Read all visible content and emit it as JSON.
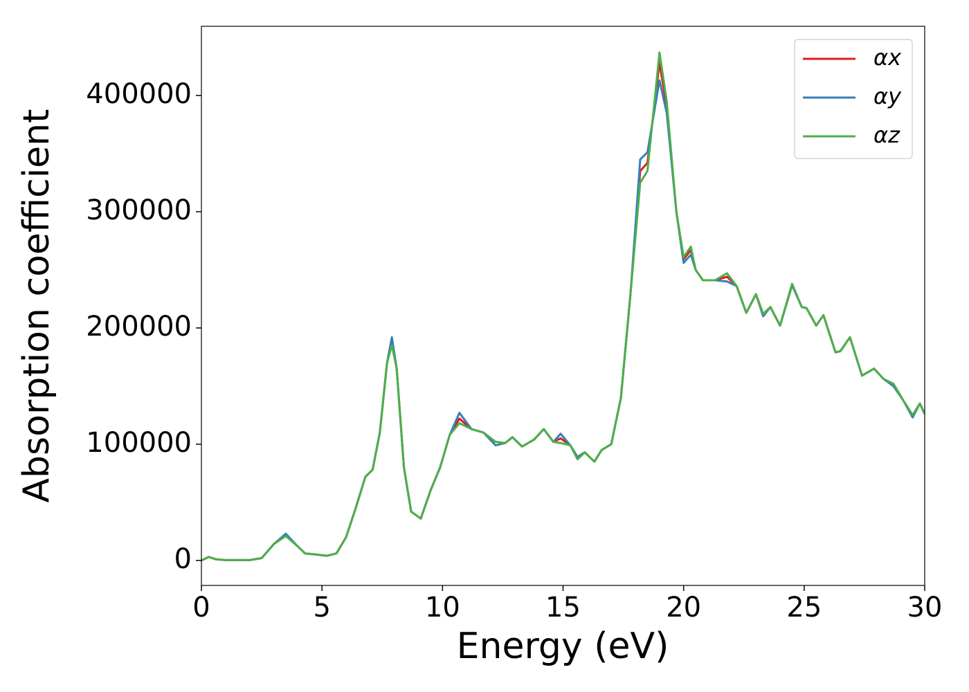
{
  "chart_data": {
    "type": "line",
    "xlabel": "Energy (eV)",
    "ylabel": "Absorption coefficient",
    "x": [
      0,
      0.3,
      0.6,
      1,
      2,
      2.5,
      3,
      3.5,
      4,
      4.3,
      4.8,
      5.2,
      5.6,
      6,
      6.4,
      6.8,
      7.1,
      7.4,
      7.7,
      7.9,
      8.1,
      8.4,
      8.7,
      9.1,
      9.5,
      9.9,
      10.3,
      10.7,
      11.2,
      11.7,
      12.2,
      12.6,
      12.9,
      13.3,
      13.8,
      14.2,
      14.6,
      14.9,
      15.3,
      15.6,
      15.9,
      16.3,
      16.6,
      17,
      17.4,
      17.8,
      18.2,
      18.5,
      19,
      19.3,
      19.7,
      20,
      20.3,
      20.5,
      20.8,
      21.3,
      21.8,
      22.2,
      22.6,
      23,
      23.3,
      23.6,
      24,
      24.5,
      24.9,
      25.1,
      25.5,
      25.8,
      26.3,
      26.5,
      26.9,
      27.4,
      27.9,
      28.3,
      28.7,
      29.1,
      29.5,
      29.8,
      30
    ],
    "series": [
      {
        "name": "αx",
        "color": "#e41a1c",
        "values": [
          0,
          3000,
          1000,
          300,
          300,
          2000,
          14000,
          22000,
          12000,
          6000,
          5000,
          4000,
          6000,
          20000,
          45000,
          72000,
          78000,
          110000,
          170000,
          188000,
          165000,
          80000,
          42000,
          36000,
          60000,
          80000,
          108000,
          122000,
          113000,
          110000,
          102000,
          101000,
          106000,
          98000,
          104000,
          113000,
          102000,
          105000,
          99000,
          89000,
          93000,
          85000,
          95000,
          100000,
          140000,
          230000,
          335000,
          342000,
          428000,
          390000,
          300000,
          259000,
          267000,
          250000,
          241000,
          241000,
          244000,
          236000,
          213000,
          229000,
          212000,
          218000,
          202000,
          237000,
          218000,
          217000,
          202000,
          211000,
          179000,
          180000,
          192000,
          159000,
          165000,
          156000,
          152000,
          138000,
          125000,
          135000,
          126000
        ]
      },
      {
        "name": "αy",
        "color": "#377eb8",
        "values": [
          0,
          3000,
          1000,
          300,
          300,
          2000,
          14000,
          23000,
          12000,
          6000,
          5000,
          4000,
          6000,
          20000,
          45000,
          72000,
          78000,
          110000,
          170000,
          192000,
          165000,
          80000,
          42000,
          36000,
          60000,
          80000,
          108000,
          127000,
          113000,
          110000,
          99000,
          101000,
          106000,
          98000,
          104000,
          113000,
          102000,
          109000,
          99000,
          89000,
          93000,
          85000,
          95000,
          100000,
          140000,
          230000,
          345000,
          351000,
          413000,
          385000,
          300000,
          256000,
          263000,
          250000,
          241000,
          241000,
          240000,
          236000,
          213000,
          229000,
          210000,
          218000,
          202000,
          237000,
          218000,
          217000,
          202000,
          211000,
          179000,
          180000,
          192000,
          159000,
          165000,
          156000,
          150000,
          138000,
          123000,
          135000,
          126000
        ]
      },
      {
        "name": "αz",
        "color": "#4daf4a",
        "values": [
          0,
          3000,
          1000,
          300,
          300,
          2000,
          14000,
          21000,
          12000,
          6000,
          5000,
          4000,
          6000,
          20000,
          45000,
          72000,
          78000,
          110000,
          170000,
          185000,
          165000,
          80000,
          42000,
          36000,
          60000,
          80000,
          108000,
          118000,
          113000,
          110000,
          102000,
          101000,
          106000,
          98000,
          104000,
          113000,
          102000,
          101000,
          99000,
          87000,
          93000,
          85000,
          95000,
          100000,
          140000,
          230000,
          325000,
          335000,
          437000,
          395000,
          300000,
          261000,
          270000,
          250000,
          241000,
          241000,
          247000,
          236000,
          213000,
          229000,
          212000,
          218000,
          202000,
          238000,
          218000,
          217000,
          202000,
          211000,
          179000,
          180000,
          192000,
          159000,
          165000,
          156000,
          152000,
          138000,
          125000,
          135000,
          126000
        ]
      }
    ],
    "xlim": [
      0,
      30
    ],
    "ylim": [
      -21500,
      459500
    ],
    "xticks": [
      0,
      5,
      10,
      15,
      20,
      25,
      30
    ],
    "yticks": [
      0,
      100000,
      200000,
      300000,
      400000
    ],
    "legend": "upper right",
    "grid": false
  }
}
